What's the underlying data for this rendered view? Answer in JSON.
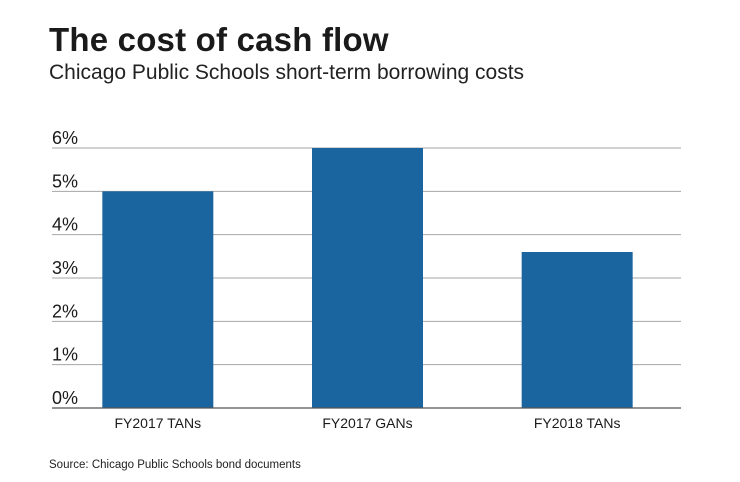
{
  "header": {
    "title": "The cost of cash flow",
    "subtitle": "Chicago Public Schools short-term borrowing costs"
  },
  "footer": {
    "source": "Source: Chicago Public Schools bond documents"
  },
  "colors": {
    "bar": "#1a65a0",
    "grid": "#a6a6a6",
    "axis": "#555555"
  },
  "chart_data": {
    "type": "bar",
    "categories": [
      "FY2017 TANs",
      "FY2017 GANs",
      "FY2018 TANs"
    ],
    "values": [
      5.0,
      6.0,
      3.6
    ],
    "title": "The cost of cash flow",
    "subtitle": "Chicago Public Schools short-term borrowing costs",
    "xlabel": "",
    "ylabel": "",
    "ylim": [
      0,
      6
    ],
    "yticks": [
      "0%",
      "1%",
      "2%",
      "3%",
      "4%",
      "5%",
      "6%"
    ],
    "grid": true,
    "legend": "none"
  }
}
